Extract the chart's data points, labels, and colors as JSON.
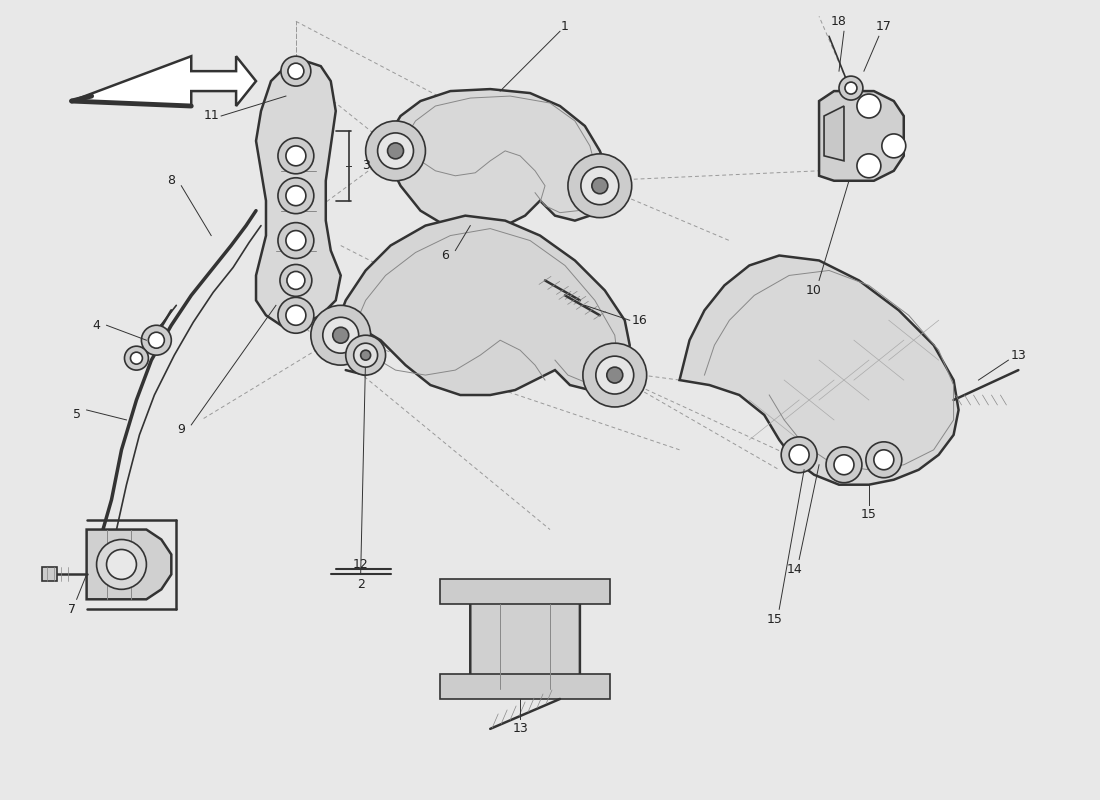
{
  "background_color": "#e8e8e8",
  "line_color": "#333333",
  "dashed_color": "#999999",
  "label_color": "#222222",
  "fig_width": 11.0,
  "fig_height": 8.0,
  "dpi": 100
}
